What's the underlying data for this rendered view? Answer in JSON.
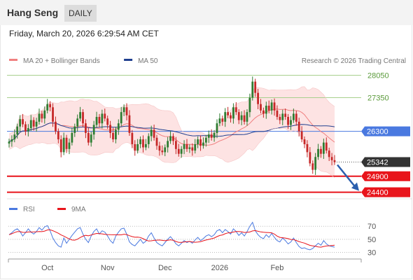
{
  "header": {
    "title": "Hang Seng",
    "timeframe": "DAILY"
  },
  "datetime": "Friday, March 20, 2026 6:29:54 AM CET",
  "watermark": "Research © 2026 Trading Central",
  "colors": {
    "up": "#2e7d32",
    "down": "#c62828",
    "bollinger_fill": "#fde3e3",
    "ma20": "#f08080",
    "ma50": "#1f3f8f",
    "resistance": "#a8d08d",
    "pivot": "#4a79e0",
    "support": "#e8141b",
    "rsi": "#4a79e0",
    "rsi_ma": "#e8141b",
    "current": "#333333"
  },
  "chart_data": [
    {
      "type": "candlestick",
      "legend": [
        {
          "name": "MA 20 + Bollinger Bands",
          "color": "#f08080"
        },
        {
          "name": "MA 50",
          "color": "#1f3f8f"
        }
      ],
      "ylim": [
        24240,
        28300
      ],
      "x_ticks": [
        {
          "label": "Oct",
          "index": 14
        },
        {
          "label": "Nov",
          "index": 36
        },
        {
          "label": "Dec",
          "index": 57
        },
        {
          "label": "2026",
          "index": 77
        },
        {
          "label": "Feb",
          "index": 98
        }
      ],
      "levels": [
        {
          "label": "28050",
          "value": 28050,
          "kind": "resistance"
        },
        {
          "label": "27350",
          "value": 27350,
          "kind": "resistance"
        },
        {
          "label": "26300",
          "value": 26300,
          "kind": "pivot"
        },
        {
          "label": "25342",
          "value": 25342,
          "kind": "current"
        },
        {
          "label": "24900",
          "value": 24900,
          "kind": "support"
        },
        {
          "label": "24400",
          "value": 24400,
          "kind": "support"
        }
      ],
      "forecast": {
        "from": 25342,
        "to": 24400
      },
      "closes": [
        25980,
        26050,
        26200,
        26450,
        26680,
        26520,
        26300,
        26400,
        26650,
        26450,
        26600,
        26850,
        26700,
        26950,
        27150,
        27050,
        26600,
        26300,
        26050,
        25650,
        26100,
        25750,
        25950,
        26250,
        26450,
        26700,
        26900,
        26550,
        26250,
        25950,
        26200,
        26500,
        26750,
        26550,
        26850,
        26700,
        26500,
        26250,
        26050,
        26350,
        26550,
        26900,
        27050,
        26800,
        26250,
        25900,
        25700,
        25900,
        26050,
        25800,
        25900,
        26150,
        26350,
        26100,
        25850,
        25700,
        25650,
        25800,
        26000,
        26150,
        26000,
        25750,
        25600,
        25750,
        25900,
        25750,
        25800,
        25700,
        25900,
        26050,
        25850,
        25950,
        26100,
        26200,
        26100,
        26250,
        26550,
        26700,
        26600,
        26900,
        26800,
        26700,
        27050,
        26900,
        26650,
        26800,
        26600,
        26900,
        27350,
        27850,
        27500,
        27150,
        26950,
        26850,
        27100,
        26950,
        27200,
        26950,
        26750,
        26650,
        26850,
        26750,
        26500,
        26650,
        26850,
        26600,
        26300,
        26050,
        25900,
        25650,
        25300,
        25100,
        25500,
        25750,
        25600,
        25950,
        25700,
        25500,
        25400,
        25342
      ]
    },
    {
      "type": "line",
      "legend": [
        {
          "name": "RSI",
          "color": "#4a79e0"
        },
        {
          "name": "9MA",
          "color": "#e8141b"
        }
      ],
      "ylim": [
        22,
        82
      ],
      "y_ticks": [
        {
          "label": "70",
          "value": 70
        },
        {
          "label": "50",
          "value": 50
        },
        {
          "label": "30",
          "value": 30
        }
      ],
      "x_ticks": [
        "Oct",
        "Nov",
        "Dec",
        "2026",
        "Feb"
      ],
      "rsi": [
        57,
        60,
        64,
        66,
        62,
        55,
        60,
        66,
        61,
        58,
        62,
        68,
        64,
        69,
        71,
        63,
        52,
        45,
        40,
        38,
        52,
        44,
        50,
        56,
        61,
        66,
        68,
        58,
        50,
        45,
        55,
        62,
        66,
        58,
        63,
        61,
        55,
        48,
        44,
        55,
        61,
        66,
        67,
        58,
        46,
        42,
        40,
        45,
        50,
        44,
        47,
        55,
        60,
        52,
        45,
        42,
        40,
        45,
        50,
        54,
        49,
        43,
        40,
        44,
        48,
        45,
        47,
        44,
        49,
        53,
        48,
        51,
        55,
        57,
        54,
        57,
        63,
        65,
        60,
        65,
        62,
        58,
        66,
        62,
        56,
        60,
        55,
        62,
        70,
        76,
        63,
        57,
        53,
        51,
        57,
        53,
        59,
        53,
        48,
        46,
        52,
        48,
        43,
        46,
        52,
        45,
        39,
        36,
        37,
        35,
        34,
        36,
        40,
        44,
        41,
        48,
        43,
        40,
        39,
        38
      ]
    }
  ]
}
